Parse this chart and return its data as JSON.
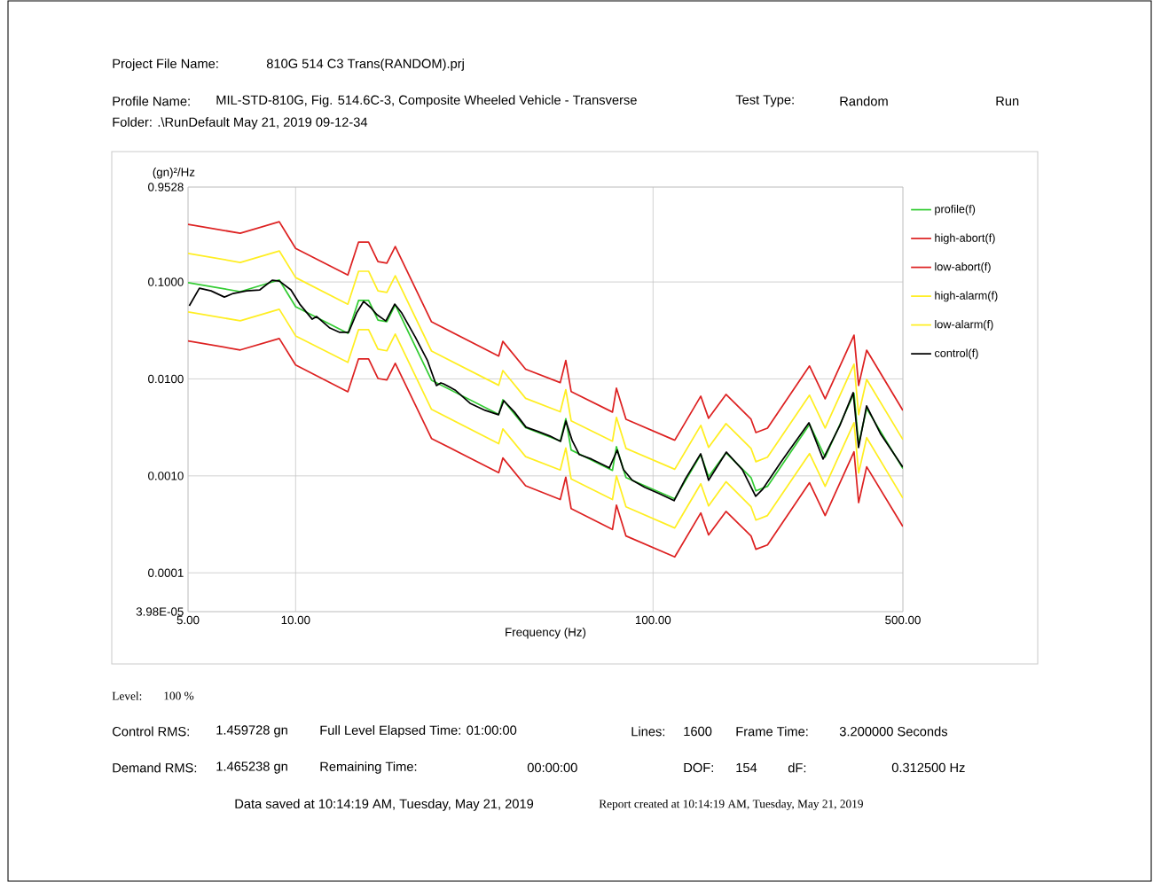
{
  "chart_data": {
    "type": "line",
    "xlabel": "Frequency (Hz)",
    "ylabel": "(gn)²/Hz",
    "x": [
      5,
      7,
      9,
      10,
      14,
      15,
      16,
      17,
      18,
      19,
      24,
      37,
      38,
      44,
      55,
      57,
      59,
      77,
      79,
      84,
      115,
      136,
      143,
      160,
      188,
      194,
      209,
      274,
      303,
      365,
      376,
      396,
      500
    ],
    "series": [
      {
        "name": "profile(f)",
        "color": "#33cc33",
        "values": [
          0.0983,
          0.0795,
          0.105,
          0.0555,
          0.0295,
          0.0645,
          0.0645,
          0.0405,
          0.039,
          0.058,
          0.0097,
          0.0043,
          0.0061,
          0.00315,
          0.00229,
          0.00388,
          0.00185,
          0.00114,
          0.002,
          0.00096,
          0.00058,
          0.00166,
          0.00098,
          0.00173,
          0.00096,
          0.0007,
          0.00078,
          0.0034,
          0.00156,
          0.0071,
          0.00214,
          0.00495,
          0.00119
        ]
      },
      {
        "name": "high-abort(f)",
        "color": "#dd2222",
        "values": [
          0.393,
          0.318,
          0.418,
          0.222,
          0.118,
          0.258,
          0.258,
          0.162,
          0.156,
          0.232,
          0.0388,
          0.0172,
          0.0244,
          0.0126,
          0.00916,
          0.0155,
          0.00741,
          0.00455,
          0.00802,
          0.00384,
          0.00233,
          0.00664,
          0.00393,
          0.00692,
          0.00384,
          0.0028,
          0.00311,
          0.0136,
          0.00623,
          0.0283,
          0.00855,
          0.0198,
          0.00474
        ]
      },
      {
        "name": "low-abort(f)",
        "color": "#dd2222",
        "values": [
          0.0246,
          0.0199,
          0.0261,
          0.0139,
          0.00738,
          0.0161,
          0.0161,
          0.0101,
          0.00975,
          0.0145,
          0.00243,
          0.00108,
          0.00153,
          0.00079,
          0.00057,
          0.00097,
          0.00046,
          0.00028,
          0.0005,
          0.00024,
          0.000146,
          0.000415,
          0.000246,
          0.00043,
          0.00024,
          0.000175,
          0.000194,
          0.00085,
          0.00039,
          0.00177,
          0.00053,
          0.00124,
          0.0003
        ]
      },
      {
        "name": "high-alarm(f)",
        "color": "#ffee22",
        "values": [
          0.197,
          0.159,
          0.209,
          0.111,
          0.059,
          0.129,
          0.129,
          0.081,
          0.078,
          0.116,
          0.0194,
          0.0086,
          0.0122,
          0.0063,
          0.00458,
          0.00775,
          0.0037,
          0.00228,
          0.00401,
          0.00192,
          0.00117,
          0.00332,
          0.00197,
          0.00346,
          0.00192,
          0.0014,
          0.00156,
          0.0068,
          0.00312,
          0.0142,
          0.00428,
          0.0099,
          0.00237
        ]
      },
      {
        "name": "low-alarm(f)",
        "color": "#ffee22",
        "values": [
          0.0491,
          0.0398,
          0.0523,
          0.0278,
          0.0148,
          0.0323,
          0.0323,
          0.0203,
          0.0195,
          0.029,
          0.00485,
          0.00215,
          0.00305,
          0.00158,
          0.00115,
          0.00194,
          0.00093,
          0.00057,
          0.001,
          0.00048,
          0.00029,
          0.00083,
          0.00049,
          0.00087,
          0.00048,
          0.00035,
          0.00039,
          0.0017,
          0.00078,
          0.00354,
          0.00107,
          0.00248,
          0.00059
        ]
      },
      {
        "name": "control(f)",
        "color": "#000000",
        "x": [
          5.04,
          5.38,
          5.8,
          6.32,
          6.69,
          7.29,
          7.94,
          8.6,
          9.01,
          9.7,
          10.27,
          11.13,
          11.45,
          12.47,
          13.29,
          14.07,
          14.81,
          15.5,
          16.23,
          16.89,
          17.88,
          18.93,
          19.81,
          21.59,
          23.39,
          24.77,
          25.48,
          25.92,
          27.92,
          30.76,
          33.9,
          36.94,
          38.23,
          40.95,
          44.11,
          47.77,
          51.44,
          55.12,
          57.04,
          59.38,
          62.16,
          67.3,
          75.45,
          79.4,
          82.64,
          87.45,
          94.76,
          103.9,
          114.5,
          123.3,
          135.9,
          143.0,
          160.4,
          177.8,
          193.7,
          202.7,
          227.3,
          272.9,
          299.0,
          333.3,
          363.1,
          375.8,
          395.7,
          433.6,
          500
        ],
        "values": [
          0.0567,
          0.0863,
          0.081,
          0.0699,
          0.0761,
          0.081,
          0.0828,
          0.1043,
          0.1021,
          0.0828,
          0.0591,
          0.0413,
          0.044,
          0.0335,
          0.0302,
          0.0302,
          0.0479,
          0.063,
          0.0544,
          0.0459,
          0.0396,
          0.0591,
          0.0479,
          0.0272,
          0.0154,
          0.00854,
          0.0091,
          0.00891,
          0.00769,
          0.00561,
          0.00474,
          0.00427,
          0.00597,
          0.00455,
          0.00318,
          0.00286,
          0.00258,
          0.00227,
          0.00368,
          0.00232,
          0.00166,
          0.00149,
          0.00121,
          0.00184,
          0.00116,
          0.000901,
          0.000761,
          0.000657,
          0.000555,
          0.000939,
          0.00169,
          0.000901,
          0.00176,
          0.00116,
          0.000617,
          0.00073,
          0.00137,
          0.00353,
          0.00149,
          0.00332,
          0.00722,
          0.00196,
          0.00527,
          0.00269,
          0.00123
        ]
      }
    ],
    "log": "xy",
    "xlim": [
      5,
      500
    ],
    "ylim": [
      3.98e-05,
      0.9528
    ],
    "xticks": [
      {
        "value": 5,
        "label": "5.00"
      },
      {
        "value": 10,
        "label": "10.00"
      },
      {
        "value": 100,
        "label": "100.00"
      },
      {
        "value": 500,
        "label": "500.00"
      }
    ],
    "yticks": [
      {
        "value": 3.98e-05,
        "label": "3.98E-05"
      },
      {
        "value": 0.0001,
        "label": "0.0001"
      },
      {
        "value": 0.001,
        "label": "0.0010"
      },
      {
        "value": 0.01,
        "label": "0.0100"
      },
      {
        "value": 0.1,
        "label": "0.1000"
      },
      {
        "value": 0.9528,
        "label": "0.9528"
      }
    ],
    "grid": true,
    "legend": "right",
    "annotations": [
      "Project File Name:",
      "810G 514 C3 Trans(RANDOM).prj",
      "Profile Name:",
      "MIL-STD-810G, Fig. 514.6C-3, Composite Wheeled Vehicle - Transverse",
      "Test Type:",
      "Random",
      "Run",
      "Folder:  .\\RunDefault May 21, 2019 09-12-34",
      "Level:",
      "100 %",
      "Control RMS:",
      "1.459728 gn",
      "Full Level Elapsed Time: 01:00:00",
      "Lines:",
      "1600",
      "Frame Time:",
      "3.200000 Seconds",
      "Demand RMS:",
      "1.465238 gn",
      "Remaining Time:",
      "00:00:00",
      "DOF:",
      "154",
      "dF:",
      "0.312500 Hz",
      "Data saved at 10:14:19 AM, Tuesday, May 21, 2019",
      "Report created at 10:14:19 AM, Tuesday, May 21, 2019"
    ]
  }
}
